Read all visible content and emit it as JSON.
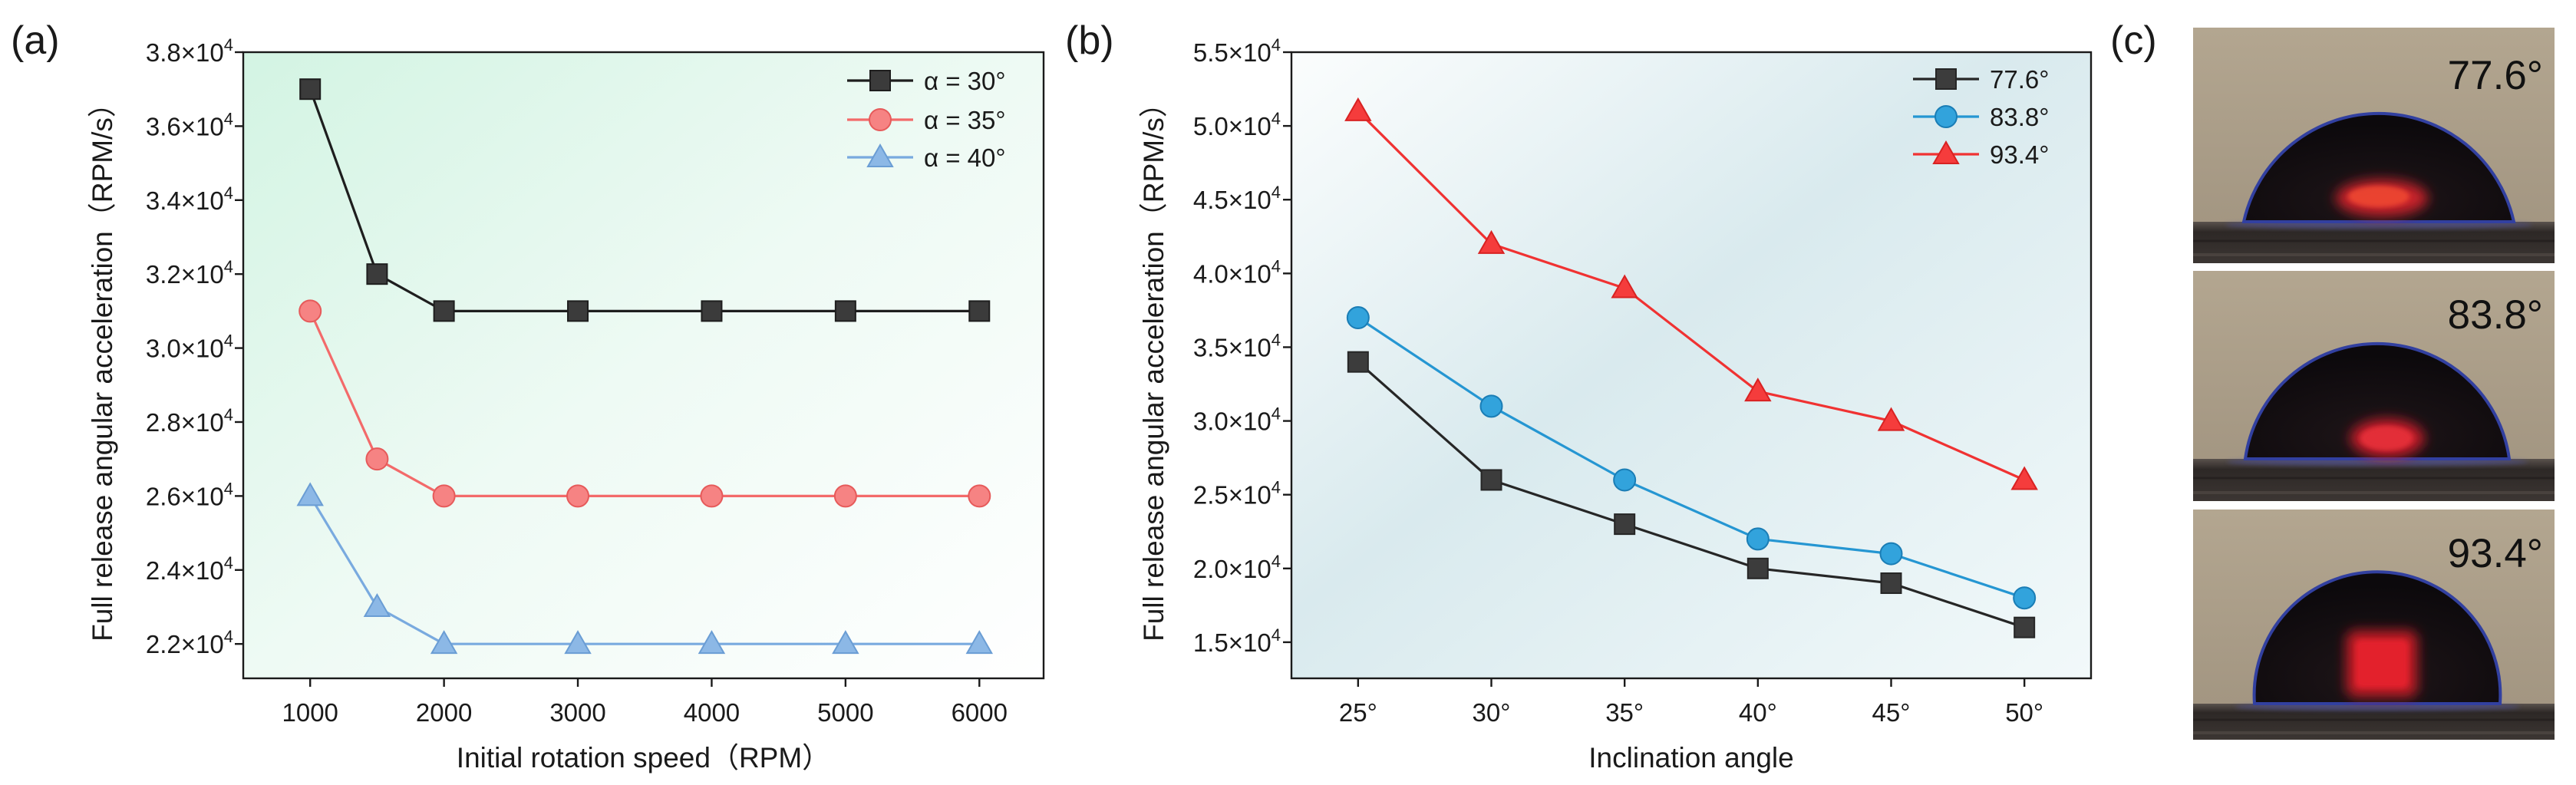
{
  "chart_data": [
    {
      "type": "line",
      "panel_label": "(a)",
      "xlabel": "Initial rotation speed（RPM）",
      "ylabel": "Full release angular acceleration（RPM/s）",
      "x": [
        1000,
        1500,
        2000,
        3000,
        4000,
        5000,
        6000
      ],
      "x_ticks": [
        1000,
        2000,
        3000,
        4000,
        5000,
        6000
      ],
      "x_tick_labels": [
        "1000",
        "2000",
        "3000",
        "4000",
        "5000",
        "6000"
      ],
      "y_tick_labels": [
        "2.2",
        "2.4",
        "2.6",
        "2.8",
        "3.0",
        "3.2",
        "3.4",
        "3.6",
        "3.8"
      ],
      "tick_multiplier": "×10",
      "tick_exponent": "4",
      "xlim": [
        500,
        6480
      ],
      "ylim": [
        21070,
        38000
      ],
      "grid": false,
      "legend": "top-right",
      "series": [
        {
          "name": "α = 30°",
          "marker": "square",
          "color": "#1e1e1e",
          "marker_fill": "#3b3b3b",
          "marker_edge": "#1e1e1e",
          "values": [
            37000,
            32000,
            31000,
            31000,
            31000,
            31000,
            31000
          ]
        },
        {
          "name": "α = 35°",
          "marker": "circle",
          "color": "#f36a6a",
          "marker_fill": "#f68383",
          "marker_edge": "#e65a5a",
          "values": [
            31000,
            27000,
            26000,
            26000,
            26000,
            26000,
            26000
          ]
        },
        {
          "name": "α = 40°",
          "marker": "triangle",
          "color": "#79aadf",
          "marker_fill": "#8cb8e6",
          "marker_edge": "#6a9dd4",
          "values": [
            26000,
            23000,
            22000,
            22000,
            22000,
            22000,
            22000
          ]
        }
      ]
    },
    {
      "type": "line",
      "panel_label": "(b)",
      "xlabel": "Inclination angle",
      "ylabel": "Full release angular acceleration（RPM/s）",
      "x": [
        25,
        30,
        35,
        40,
        45,
        50
      ],
      "x_ticks": [
        25,
        30,
        35,
        40,
        45,
        50
      ],
      "x_tick_labels": [
        "25°",
        "30°",
        "35°",
        "40°",
        "45°",
        "50°"
      ],
      "y_tick_labels": [
        "1.5",
        "2.0",
        "2.5",
        "3.0",
        "3.5",
        "4.0",
        "4.5",
        "5.0",
        "5.5"
      ],
      "tick_multiplier": "×10",
      "tick_exponent": "4",
      "xlim": [
        22.5,
        52.5
      ],
      "ylim": [
        12550,
        55000
      ],
      "grid": false,
      "legend": "top-right",
      "series": [
        {
          "name": "77.6°",
          "marker": "square",
          "color": "#262626",
          "marker_fill": "#3c3c3c",
          "marker_edge": "#262626",
          "values": [
            34000,
            26000,
            23000,
            20000,
            19000,
            16000
          ]
        },
        {
          "name": "83.8°",
          "marker": "circle",
          "color": "#2596d2",
          "marker_fill": "#32a3dc",
          "marker_edge": "#1a7db5",
          "values": [
            37000,
            31000,
            26000,
            22000,
            21000,
            18000
          ]
        },
        {
          "name": "93.4°",
          "marker": "triangle",
          "color": "#f03232",
          "marker_fill": "#f53c3c",
          "marker_edge": "#d82222",
          "values": [
            51000,
            42000,
            39000,
            32000,
            30000,
            26000
          ]
        }
      ]
    }
  ],
  "photos_panel": {
    "label": "(c)",
    "photos": [
      {
        "label": "77.6°"
      },
      {
        "label": "83.8°"
      },
      {
        "label": "93.4°"
      }
    ]
  }
}
